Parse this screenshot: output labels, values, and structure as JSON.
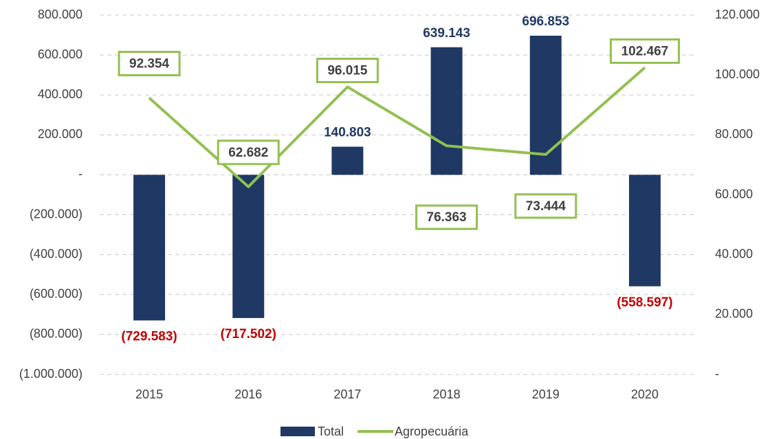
{
  "chart_data": {
    "type": "bar-line",
    "categories": [
      "2015",
      "2016",
      "2017",
      "2018",
      "2019",
      "2020"
    ],
    "series": [
      {
        "name": "Total",
        "type": "bar",
        "color": "#203864",
        "values": [
          -729583,
          -717502,
          140803,
          639143,
          696853,
          -558597
        ],
        "value_labels": [
          "(729.583)",
          "(717.502)",
          "140.803",
          "639.143",
          "696.853",
          "(558.597)"
        ]
      },
      {
        "name": "Agropecuária",
        "type": "line",
        "axis": "y2",
        "color": "#92c050",
        "values": [
          92354,
          62682,
          96015,
          76363,
          73444,
          102467
        ],
        "value_labels": [
          "92.354",
          "62.682",
          "96.015",
          "76.363",
          "73.444",
          "102.467"
        ]
      }
    ],
    "ylim": [
      -1000000,
      800000
    ],
    "yticks": [
      {
        "value": 800000,
        "label": "800.000"
      },
      {
        "value": 600000,
        "label": "600.000"
      },
      {
        "value": 400000,
        "label": "400.000"
      },
      {
        "value": 200000,
        "label": "200.000"
      },
      {
        "value": 0,
        "label": "-"
      },
      {
        "value": -200000,
        "label": "(200.000)"
      },
      {
        "value": -400000,
        "label": "(400.000)"
      },
      {
        "value": -600000,
        "label": "(600.000)"
      },
      {
        "value": -800000,
        "label": "(800.000)"
      },
      {
        "value": -1000000,
        "label": "(1.000.000)"
      }
    ],
    "y2lim": [
      0,
      120000
    ],
    "y2ticks": [
      {
        "value": 0,
        "label": "-"
      },
      {
        "value": 20000,
        "label": "20.000"
      },
      {
        "value": 40000,
        "label": "40.000"
      },
      {
        "value": 60000,
        "label": "60.000"
      },
      {
        "value": 80000,
        "label": "80.000"
      },
      {
        "value": 100000,
        "label": "100.000"
      },
      {
        "value": 120000,
        "label": "120.000"
      }
    ],
    "grid": true,
    "legend": "bottom"
  }
}
